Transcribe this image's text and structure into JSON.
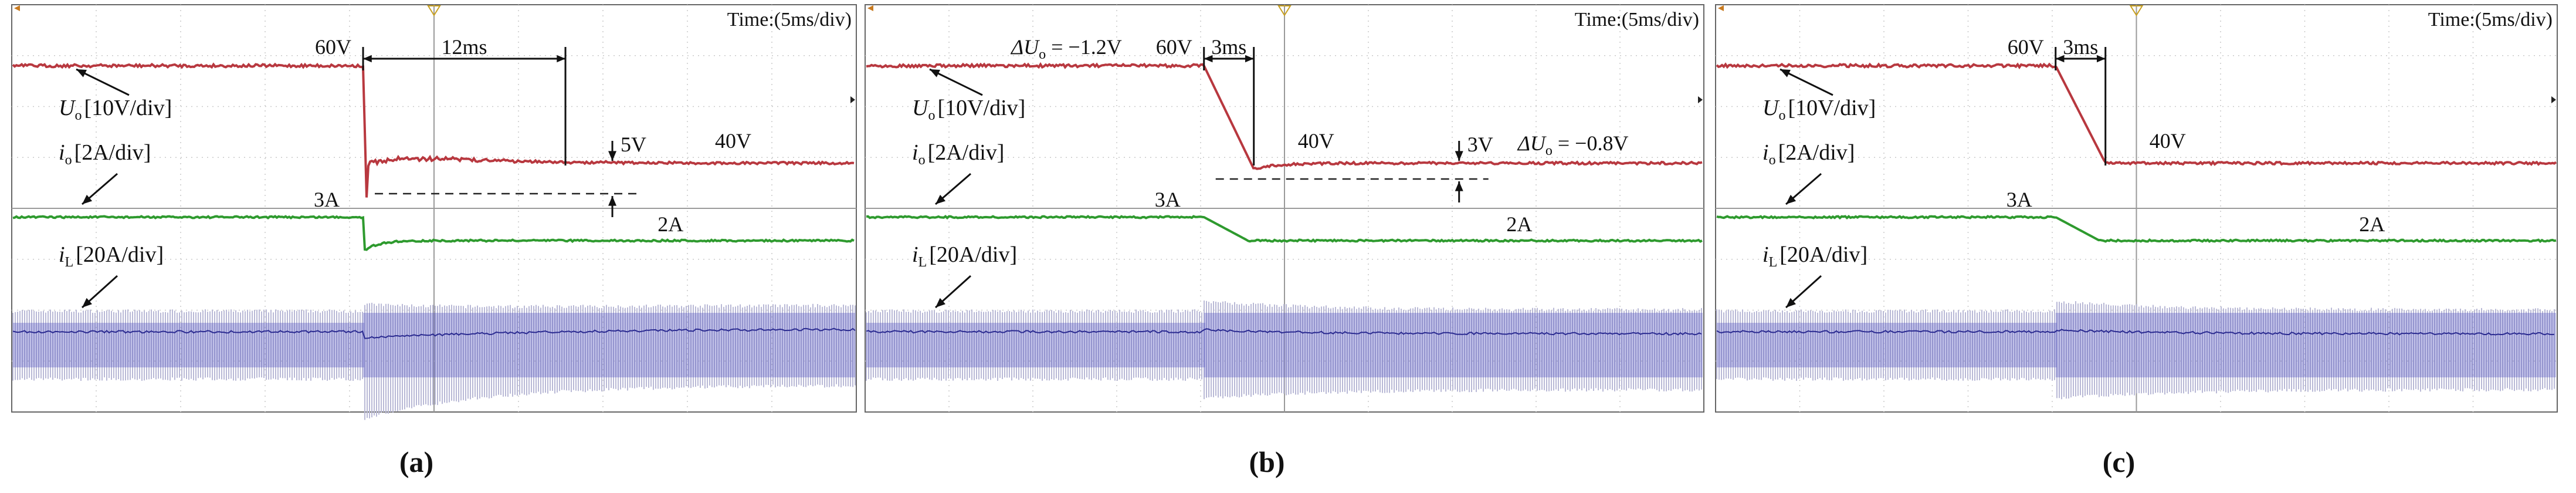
{
  "chart_data": [
    {
      "type": "line",
      "panel_label": "(a)",
      "time_scale": "Time:(5ms/div)",
      "x_range_ms": [
        0,
        50
      ],
      "step_time_ms": 20.8,
      "series": [
        {
          "name": "Uo",
          "scale": "[10V/div]",
          "unit": "V",
          "before": 60,
          "after": 40,
          "undershoot": 5,
          "settling_ms": 12,
          "color": "#b8383f"
        },
        {
          "name": "io",
          "scale": "[2A/div]",
          "unit": "A",
          "before": 3,
          "after": 2,
          "color": "#2e9a2e"
        },
        {
          "name": "iL",
          "scale": "[20A/div]",
          "unit": "A",
          "color": "#4a4ab8"
        }
      ],
      "annotations": {
        "u_before": "60V",
        "u_after": "40V",
        "undershoot": "5V",
        "time": "12ms",
        "i_before": "3A",
        "i_after": "2A"
      }
    },
    {
      "type": "line",
      "panel_label": "(b)",
      "time_scale": "Time:(5ms/div)",
      "x_range_ms": [
        0,
        50
      ],
      "step_time_ms": 20.2,
      "series": [
        {
          "name": "Uo",
          "scale": "[10V/div]",
          "unit": "V",
          "before": 60,
          "after": 40,
          "undershoot": 3,
          "settling_ms": 3,
          "color": "#b8383f"
        },
        {
          "name": "io",
          "scale": "[2A/div]",
          "unit": "A",
          "before": 3,
          "after": 2,
          "color": "#2e9a2e"
        },
        {
          "name": "iL",
          "scale": "[20A/div]",
          "unit": "A",
          "color": "#4a4ab8"
        }
      ],
      "annotations": {
        "u_before": "60V",
        "u_after": "40V",
        "undershoot": "3V",
        "time": "3ms",
        "i_before": "3A",
        "i_after": "2A",
        "delta_u_top": "ΔU",
        "delta_u_top_sub": "o",
        "delta_u_top_val": " = −1.2V",
        "delta_u_bottom": "ΔU",
        "delta_u_bottom_sub": "o",
        "delta_u_bottom_val": " = −0.8V"
      }
    },
    {
      "type": "line",
      "panel_label": "(c)",
      "time_scale": "Time:(5ms/div)",
      "x_range_ms": [
        0,
        50
      ],
      "step_time_ms": 20.2,
      "series": [
        {
          "name": "Uo",
          "scale": "[10V/div]",
          "unit": "V",
          "before": 60,
          "after": 40,
          "undershoot": 0,
          "settling_ms": 3,
          "color": "#b8383f"
        },
        {
          "name": "io",
          "scale": "[2A/div]",
          "unit": "A",
          "before": 3,
          "after": 2,
          "color": "#2e9a2e"
        },
        {
          "name": "iL",
          "scale": "[20A/div]",
          "unit": "A",
          "color": "#4a4ab8"
        }
      ],
      "annotations": {
        "u_before": "60V",
        "u_after": "40V",
        "time": "3ms",
        "i_before": "3A",
        "i_after": "2A"
      }
    }
  ],
  "labels": {
    "uo_main": "U",
    "uo_sub": "o",
    "uo_scale": "[10V/div]",
    "io_main": "i",
    "io_sub": "o",
    "io_scale": "[2A/div]",
    "il_main": "i",
    "il_sub": "L",
    "il_scale": "[20A/div]"
  }
}
